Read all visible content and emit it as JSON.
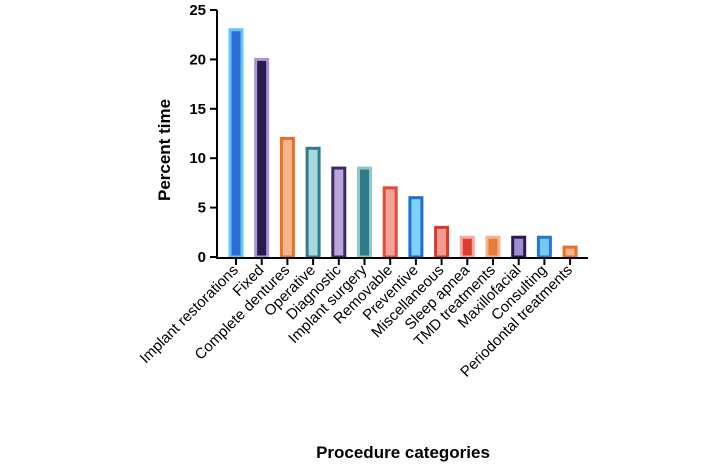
{
  "chart_data": {
    "type": "bar",
    "xlabel": "Procedure categories",
    "ylabel": "Percent time",
    "ylim": [
      0,
      25
    ],
    "yticks": [
      0,
      5,
      10,
      15,
      20,
      25
    ],
    "grid": false,
    "categories": [
      "Implant restorations",
      "Fixed",
      "Complete dentures",
      "Operative",
      "Diagnostic",
      "Implant surgery",
      "Removable",
      "Preventive",
      "Miscellaneous",
      "Sleep apnea",
      "TMD treatments",
      "Maxillofacial",
      "Consulting",
      "Periodontal treatments"
    ],
    "values": [
      23,
      20,
      12,
      11,
      9,
      9,
      7,
      6,
      3,
      2,
      2,
      2,
      2,
      1
    ],
    "bar_colors": [
      {
        "edge": "#5bc8f5",
        "fill": "#2f6bd6"
      },
      {
        "edge": "#a996cf",
        "fill": "#2b1a4f"
      },
      {
        "edge": "#e8702a",
        "fill": "#f5b48c"
      },
      {
        "edge": "#2e7d8a",
        "fill": "#a6d9dd"
      },
      {
        "edge": "#3b2a66",
        "fill": "#b9a7d8"
      },
      {
        "edge": "#8fc6cc",
        "fill": "#2f7c86"
      },
      {
        "edge": "#e04b3a",
        "fill": "#f4a29a"
      },
      {
        "edge": "#1f6fd1",
        "fill": "#7fd1f5"
      },
      {
        "edge": "#d93a2a",
        "fill": "#f29b93"
      },
      {
        "edge": "#f2aaa3",
        "fill": "#e03a2c"
      },
      {
        "edge": "#f5b48c",
        "fill": "#e87a3a"
      },
      {
        "edge": "#2b1a4f",
        "fill": "#9f8ccf"
      },
      {
        "edge": "#2a74d6",
        "fill": "#74c9f2"
      },
      {
        "edge": "#e8702a",
        "fill": "#f5b48c"
      }
    ]
  }
}
